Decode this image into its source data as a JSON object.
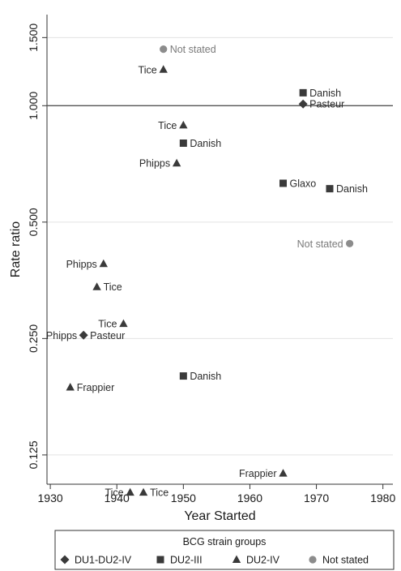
{
  "chart_data": {
    "type": "scatter",
    "xlabel": "Year Started",
    "ylabel": "Rate ratio",
    "x_scale": "linear",
    "y_scale": "log",
    "xlim": [
      1929.5,
      1981.5
    ],
    "ylim": [
      0.105,
      1.72
    ],
    "x_ticks": [
      1930,
      1940,
      1950,
      1960,
      1970,
      1980
    ],
    "x_tick_labels": [
      "1930",
      "1940",
      "1950",
      "1960",
      "1970",
      "1980"
    ],
    "y_ticks": [
      0.125,
      0.25,
      0.5,
      1.0,
      1.5
    ],
    "y_tick_labels": [
      "0.125",
      "0.250",
      "0.500",
      "1.000",
      "1.500"
    ],
    "reference_line": 1.0,
    "grid": "horizontal",
    "legend_position": "bottom",
    "legend_title": "BCG strain groups",
    "series": [
      {
        "name": "DU1-DU2-IV",
        "marker": "diamond",
        "color": "#3a3a3a",
        "points": [
          {
            "x": 1968,
            "y": 1.01,
            "label": "Pasteur",
            "label_side": "right"
          },
          {
            "x": 1935,
            "y": 0.255,
            "label": "Phipps Pasteur",
            "label_side": "both"
          }
        ]
      },
      {
        "name": "DU2-III",
        "marker": "square",
        "color": "#3a3a3a",
        "points": [
          {
            "x": 1968,
            "y": 1.08,
            "label": "Danish",
            "label_side": "right"
          },
          {
            "x": 1950,
            "y": 0.8,
            "label": "Danish",
            "label_side": "right"
          },
          {
            "x": 1965,
            "y": 0.63,
            "label": "Glaxo",
            "label_side": "right"
          },
          {
            "x": 1972,
            "y": 0.61,
            "label": "Danish",
            "label_side": "right"
          },
          {
            "x": 1950,
            "y": 0.2,
            "label": "Danish",
            "label_side": "right"
          }
        ]
      },
      {
        "name": "DU2-IV",
        "marker": "triangle",
        "color": "#3a3a3a",
        "points": [
          {
            "x": 1947,
            "y": 1.24,
            "label": "Tice",
            "label_side": "left"
          },
          {
            "x": 1950,
            "y": 0.89,
            "label": "Tice",
            "label_side": "left"
          },
          {
            "x": 1949,
            "y": 0.71,
            "label": "Phipps",
            "label_side": "left"
          },
          {
            "x": 1938,
            "y": 0.39,
            "label": "Phipps",
            "label_side": "left"
          },
          {
            "x": 1937,
            "y": 0.34,
            "label": "Tice",
            "label_side": "right"
          },
          {
            "x": 1941,
            "y": 0.273,
            "label": "Tice",
            "label_side": "left"
          },
          {
            "x": 1933,
            "y": 0.187,
            "label": "Frappier",
            "label_side": "right"
          },
          {
            "x": 1965,
            "y": 0.112,
            "label": "Frappier",
            "label_side": "left"
          },
          {
            "x": 1942,
            "y": 0.1,
            "label": "Tice",
            "label_side": "left"
          },
          {
            "x": 1944,
            "y": 0.1,
            "label": "Tice",
            "label_side": "right"
          }
        ]
      },
      {
        "name": "Not stated",
        "marker": "circle",
        "color": "#8c8c8c",
        "points": [
          {
            "x": 1947,
            "y": 1.4,
            "label": "Not stated",
            "label_side": "right"
          },
          {
            "x": 1975,
            "y": 0.44,
            "label": "Not stated",
            "label_side": "left"
          }
        ]
      }
    ]
  }
}
